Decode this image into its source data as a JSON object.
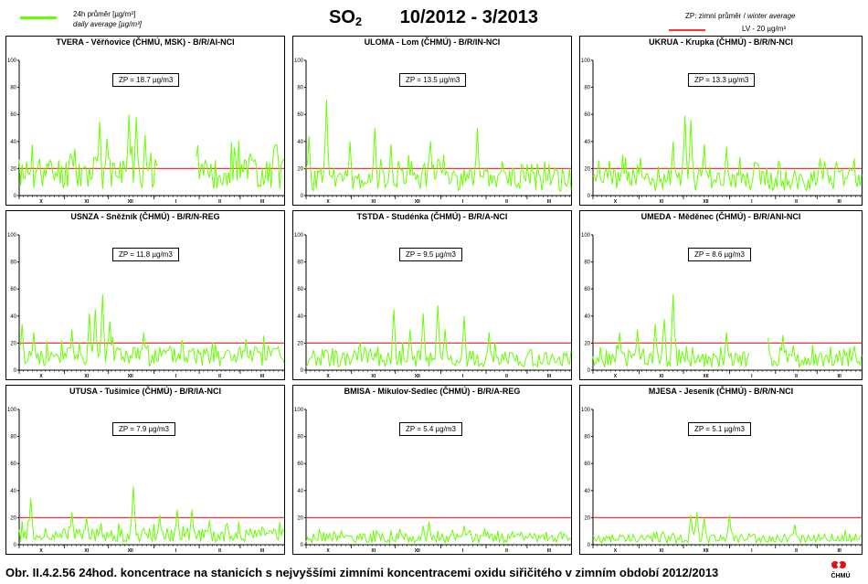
{
  "header": {
    "legend_daily_cz": "24h průměr [µg/m³]",
    "legend_daily_en": "daily average [µg/m³]",
    "title_pollutant": "SO",
    "title_subscript": "2",
    "title_period": "10/2012 - 3/2013",
    "legend_zp_cz": "ZP: zimní průměr / ",
    "legend_zp_en": "winter average",
    "legend_lv": "LV - 20 µg/m³"
  },
  "colors": {
    "series": "#66ff00",
    "limit": "#ff3333"
  },
  "caption": "Obr. II.4.2.56  24hod. koncentrace na stanicích s nejvyššími zimními koncentracemi oxidu siřičitého v zimním období 2012/2013",
  "logo": {
    "text": "ČHMÚ"
  },
  "chart_data": [
    {
      "type": "line",
      "title": "TVERA -  Věřňovice (ČHMÚ, MSK) - B/R/AI-NCI",
      "zp_label": "ZP = 18.7 µg/m3",
      "ylim": [
        0,
        100
      ],
      "yticks": [
        0,
        20,
        40,
        60,
        80,
        100
      ],
      "xticks": [
        "X",
        "XI",
        "XII",
        "I",
        "II",
        "III"
      ],
      "limit": 20,
      "winter_average": 18.7,
      "seed": 11,
      "spikes": [
        [
          55,
          55
        ],
        [
          60,
          42
        ],
        [
          75,
          60
        ],
        [
          80,
          58
        ],
        [
          86,
          45
        ]
      ],
      "gaps": [
        [
          96,
          106
        ],
        [
          108,
          120
        ]
      ]
    },
    {
      "type": "line",
      "title": "ULOMA - Lom (ČHMÚ) - B/R/IN-NCI",
      "zp_label": "ZP = 13.5 µg/m3",
      "ylim": [
        0,
        100
      ],
      "yticks": [
        0,
        20,
        40,
        60,
        80,
        100
      ],
      "xticks": [
        "X",
        "XI",
        "XII",
        "I",
        "II",
        "III"
      ],
      "limit": 20,
      "winter_average": 13.5,
      "seed": 23,
      "spikes": [
        [
          2,
          44
        ],
        [
          14,
          71
        ],
        [
          30,
          40
        ],
        [
          47,
          50
        ],
        [
          58,
          38
        ],
        [
          70,
          30
        ],
        [
          85,
          40
        ],
        [
          94,
          30
        ],
        [
          117,
          50
        ]
      ],
      "gaps": []
    },
    {
      "type": "line",
      "title": "UKRUA - Krupka (ČHMÚ) - B/R/N-NCI",
      "zp_label": "ZP = 13.3 µg/m3",
      "ylim": [
        0,
        100
      ],
      "yticks": [
        0,
        20,
        40,
        60,
        80,
        100
      ],
      "xticks": [
        "X",
        "XI",
        "XII",
        "I",
        "II",
        "III"
      ],
      "limit": 20,
      "winter_average": 13.3,
      "seed": 37,
      "spikes": [
        [
          4,
          26
        ],
        [
          20,
          30
        ],
        [
          32,
          28
        ],
        [
          54,
          40
        ],
        [
          62,
          59
        ],
        [
          66,
          56
        ],
        [
          75,
          38
        ],
        [
          90,
          36
        ],
        [
          110,
          24
        ]
      ],
      "gaps": []
    },
    {
      "type": "line",
      "title": "USNZA - Sněžník (ČHMÚ) - B/R/N-REG",
      "zp_label": "ZP = 11.8 µg/m3",
      "ylim": [
        0,
        100
      ],
      "yticks": [
        0,
        20,
        40,
        60,
        80,
        100
      ],
      "xticks": [
        "X",
        "XI",
        "XII",
        "I",
        "II",
        "III"
      ],
      "limit": 20,
      "winter_average": 11.8,
      "seed": 41,
      "spikes": [
        [
          2,
          34
        ],
        [
          10,
          28
        ],
        [
          36,
          30
        ],
        [
          48,
          42
        ],
        [
          52,
          45
        ],
        [
          57,
          56
        ],
        [
          62,
          36
        ],
        [
          85,
          28
        ],
        [
          128,
          16
        ]
      ],
      "gaps": []
    },
    {
      "type": "line",
      "title": "TSTDA - Studénka (ČHMÚ) - B/R/A-NCI",
      "zp_label": "ZP = 9.5 µg/m3",
      "ylim": [
        0,
        100
      ],
      "yticks": [
        0,
        20,
        40,
        60,
        80,
        100
      ],
      "xticks": [
        "X",
        "XI",
        "XII",
        "I",
        "II",
        "III"
      ],
      "limit": 20,
      "winter_average": 9.5,
      "seed": 53,
      "spikes": [
        [
          60,
          45
        ],
        [
          71,
          30
        ],
        [
          80,
          42
        ],
        [
          90,
          48
        ],
        [
          95,
          30
        ],
        [
          108,
          40
        ],
        [
          125,
          28
        ]
      ],
      "gaps": []
    },
    {
      "type": "line",
      "title": "UMEDA - Měděnec (ČHMÚ) - B/R/ANI-NCI",
      "zp_label": "ZP = 8.6 µg/m3",
      "ylim": [
        0,
        100
      ],
      "yticks": [
        0,
        20,
        40,
        60,
        80,
        100
      ],
      "xticks": [
        "X",
        "XI",
        "XII",
        "I",
        "II",
        "III"
      ],
      "limit": 20,
      "winter_average": 8.6,
      "seed": 67,
      "spikes": [
        [
          18,
          28
        ],
        [
          30,
          30
        ],
        [
          42,
          34
        ],
        [
          48,
          38
        ],
        [
          54,
          56
        ],
        [
          90,
          28
        ],
        [
          118,
          24
        ],
        [
          128,
          26
        ]
      ],
      "gaps": [
        [
          106,
          117
        ]
      ]
    },
    {
      "type": "line",
      "title": "UTUSA - Tušimice (ČHMÚ) - B/R/IA-NCI",
      "zp_label": "ZP = 7.9 µg/m3",
      "ylim": [
        0,
        100
      ],
      "yticks": [
        0,
        20,
        40,
        60,
        80,
        100
      ],
      "xticks": [
        "X",
        "XI",
        "XII",
        "I",
        "II",
        "III"
      ],
      "limit": 20,
      "winter_average": 7.9,
      "seed": 71,
      "spikes": [
        [
          8,
          34
        ],
        [
          36,
          24
        ],
        [
          46,
          20
        ],
        [
          78,
          43
        ],
        [
          96,
          22
        ],
        [
          108,
          26
        ],
        [
          118,
          26
        ],
        [
          130,
          18
        ]
      ],
      "gaps": []
    },
    {
      "type": "line",
      "title": "BMISA - Mikulov-Sedlec (ČHMÚ) - B/R/A-REG",
      "zp_label": "ZP = 5.4 µg/m3",
      "ylim": [
        0,
        100
      ],
      "yticks": [
        0,
        20,
        40,
        60,
        80,
        100
      ],
      "xticks": [
        "X",
        "XI",
        "XII",
        "I",
        "II",
        "III"
      ],
      "limit": 20,
      "winter_average": 5.4,
      "seed": 83,
      "spikes": [
        [
          80,
          14
        ],
        [
          84,
          17
        ],
        [
          100,
          11
        ],
        [
          108,
          14
        ],
        [
          122,
          12
        ]
      ],
      "gaps": []
    },
    {
      "type": "line",
      "title": "MJESA - Jeseník (ČHMÚ) - B/R/N-NCI",
      "zp_label": "ZP = 5.1 µg/m3",
      "ylim": [
        0,
        100
      ],
      "yticks": [
        0,
        20,
        40,
        60,
        80,
        100
      ],
      "xticks": [
        "X",
        "XI",
        "XII",
        "I",
        "II",
        "III"
      ],
      "limit": 20,
      "winter_average": 5.1,
      "seed": 97,
      "spikes": [
        [
          66,
          22
        ],
        [
          70,
          24
        ],
        [
          75,
          20
        ],
        [
          92,
          22
        ],
        [
          136,
          15
        ]
      ],
      "gaps": []
    }
  ]
}
